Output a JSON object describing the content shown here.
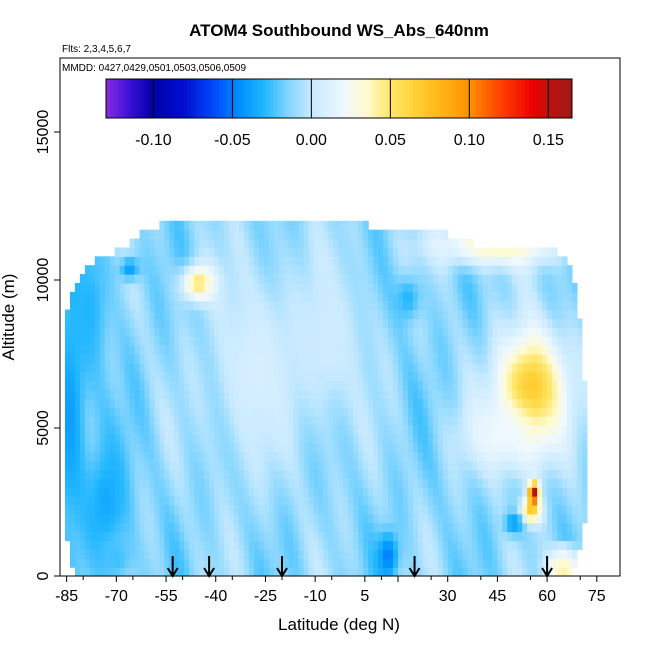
{
  "chart_data": {
    "type": "heatmap",
    "title": "ATOM4 Southbound WS_Abs_640nm",
    "flights_note": "Flts: 2,3,4,5,6,7",
    "dates_note": "MMDD: 0427,0429,0501,0503,0506,0509",
    "xlabel": "Latitude (deg N)",
    "ylabel": "Altitude (m)",
    "xlim": [
      -87,
      82
    ],
    "ylim": [
      0,
      17500
    ],
    "x_ticks": [
      -85,
      -70,
      -55,
      -40,
      -25,
      -10,
      5,
      15,
      30,
      45,
      60,
      75
    ],
    "x_tick_labels": [
      "-85",
      "-70",
      "-55",
      "-40",
      "-25",
      "-10",
      "5",
      "",
      "30",
      "45",
      "60",
      "75"
    ],
    "y_ticks": [
      0,
      5000,
      10000,
      15000
    ],
    "y_tick_labels": [
      "0",
      "5000",
      "10000",
      "15000"
    ],
    "colorbar": {
      "range": [
        -0.13,
        0.165
      ],
      "ticks": [
        -0.1,
        -0.05,
        0.0,
        0.05,
        0.1,
        0.15
      ],
      "tick_labels": [
        "-0.10",
        "-0.05",
        "0.00",
        "0.05",
        "0.10",
        "0.15"
      ],
      "stops": [
        {
          "v": -0.13,
          "c": "#8a2be2"
        },
        {
          "v": -0.115,
          "c": "#3a10d8"
        },
        {
          "v": -0.1,
          "c": "#0000a8"
        },
        {
          "v": -0.08,
          "c": "#0010d0"
        },
        {
          "v": -0.06,
          "c": "#0050ff"
        },
        {
          "v": -0.045,
          "c": "#0090ff"
        },
        {
          "v": -0.03,
          "c": "#20b6ff"
        },
        {
          "v": -0.015,
          "c": "#80d4ff"
        },
        {
          "v": 0.0,
          "c": "#c6e9ff"
        },
        {
          "v": 0.02,
          "c": "#eef8ff"
        },
        {
          "v": 0.035,
          "c": "#fffbd0"
        },
        {
          "v": 0.05,
          "c": "#ffe66a"
        },
        {
          "v": 0.065,
          "c": "#ffd23a"
        },
        {
          "v": 0.08,
          "c": "#ffb81a"
        },
        {
          "v": 0.1,
          "c": "#ff9200"
        },
        {
          "v": 0.12,
          "c": "#ff4000"
        },
        {
          "v": 0.14,
          "c": "#ee0000"
        },
        {
          "v": 0.15,
          "c": "#c01010"
        },
        {
          "v": 0.165,
          "c": "#a01818"
        }
      ]
    },
    "flight_markers_lat": [
      -53,
      -42,
      -20,
      20,
      60
    ],
    "background_value": -0.012,
    "envelope": [
      [
        -86,
        3000,
        9000
      ],
      [
        -84,
        300,
        9200
      ],
      [
        -82,
        150,
        10000
      ],
      [
        -79,
        150,
        10500
      ],
      [
        -75,
        0,
        10800
      ],
      [
        -68,
        0,
        11000
      ],
      [
        -64,
        0,
        11500
      ],
      [
        -58,
        0,
        11800
      ],
      [
        -50,
        0,
        12100
      ],
      [
        -20,
        0,
        12100
      ],
      [
        -5,
        0,
        12000
      ],
      [
        10,
        0,
        11800
      ],
      [
        25,
        0,
        11800
      ],
      [
        35,
        0,
        11300
      ],
      [
        50,
        0,
        11000
      ],
      [
        62,
        0,
        11000
      ],
      [
        67,
        0,
        10500
      ],
      [
        69,
        500,
        9500
      ],
      [
        71,
        1500,
        7000
      ],
      [
        72,
        3000,
        4800
      ]
    ],
    "anomalies": [
      {
        "lat": -84,
        "alt": 5500,
        "rlat": 5,
        "ralt": 4000,
        "v": -0.04
      },
      {
        "lat": -78,
        "alt": 9000,
        "rlat": 6,
        "ralt": 2500,
        "v": -0.03
      },
      {
        "lat": -73,
        "alt": 2500,
        "rlat": 7,
        "ralt": 2200,
        "v": -0.035
      },
      {
        "lat": -70,
        "alt": 600,
        "rlat": 5,
        "ralt": 800,
        "v": -0.025
      },
      {
        "lat": -66,
        "alt": 10400,
        "rlat": 3,
        "ralt": 400,
        "v": -0.04
      },
      {
        "lat": -45,
        "alt": 9900,
        "rlat": 5,
        "ralt": 600,
        "v": 0.055
      },
      {
        "lat": -28,
        "alt": 7000,
        "rlat": 14,
        "ralt": 3500,
        "v": 0.008
      },
      {
        "lat": -6,
        "alt": 8000,
        "rlat": 12,
        "ralt": 3000,
        "v": 0.004
      },
      {
        "lat": 12,
        "alt": 700,
        "rlat": 3,
        "ralt": 800,
        "v": -0.05
      },
      {
        "lat": 18,
        "alt": 9400,
        "rlat": 4,
        "ralt": 800,
        "v": -0.03
      },
      {
        "lat": 45,
        "alt": 11200,
        "rlat": 18,
        "ralt": 700,
        "v": 0.04
      },
      {
        "lat": 55,
        "alt": 6200,
        "rlat": 10,
        "ralt": 2000,
        "v": 0.075
      },
      {
        "lat": 46,
        "alt": 4800,
        "rlat": 12,
        "ralt": 1200,
        "v": 0.02
      },
      {
        "lat": 55,
        "alt": 2200,
        "rlat": 3,
        "ralt": 400,
        "v": 0.07
      },
      {
        "lat": 56,
        "alt": 2800,
        "rlat": 1.5,
        "ralt": 350,
        "v": 0.16
      },
      {
        "lat": 50,
        "alt": 1800,
        "rlat": 3,
        "ralt": 400,
        "v": -0.04
      },
      {
        "lat": 65,
        "alt": 300,
        "rlat": 5,
        "ralt": 400,
        "v": 0.05
      },
      {
        "lat": 65,
        "alt": 800,
        "rlat": 4,
        "ralt": 300,
        "v": 0.02
      }
    ]
  }
}
